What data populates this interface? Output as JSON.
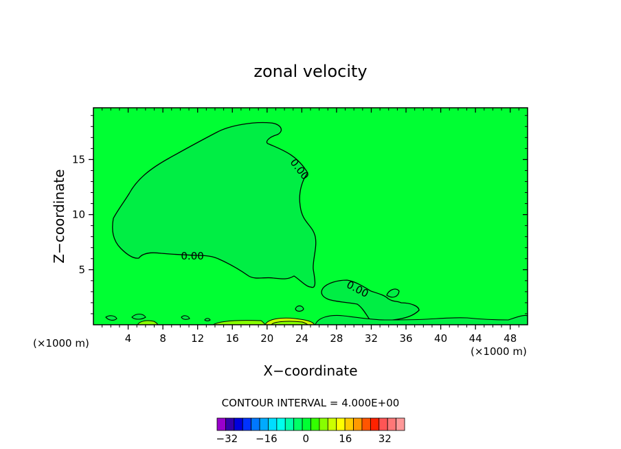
{
  "chart_data": {
    "type": "contour",
    "title": "zonal velocity",
    "xlabel": "X−coordinate",
    "ylabel": "Z−coordinate",
    "x_unit_left": "(×1000 m)",
    "x_unit_right": "(×1000 m)",
    "xlim": [
      0,
      50
    ],
    "ylim": [
      0,
      19.7
    ],
    "xticks": [
      4,
      8,
      12,
      16,
      20,
      24,
      28,
      32,
      36,
      40,
      44,
      48
    ],
    "xtick_labels": [
      "4",
      "8",
      "12",
      "16",
      "20",
      "24",
      "28",
      "32",
      "36",
      "40",
      "44",
      "48"
    ],
    "yticks": [
      5,
      10,
      15
    ],
    "ytick_labels": [
      "5",
      "10",
      "15"
    ],
    "background_color": "#00ff33",
    "negative_fill_color": "#00ee44",
    "contour_labels": [
      {
        "text": "0.00",
        "x": 11.4,
        "y": 6.2
      },
      {
        "text": "0.00",
        "x": 23.7,
        "y": 14.1
      },
      {
        "text": "0.00",
        "x": 30.4,
        "y": 3.2
      }
    ],
    "contour_interval_text": "CONTOUR INTERVAL = 4.000E+00",
    "colorbar": {
      "min": -36,
      "max": 40,
      "step": 4,
      "tick_values": [
        -32,
        -16,
        0,
        16,
        32
      ],
      "tick_labels": [
        "−32",
        "−16",
        "0",
        "16",
        "32"
      ],
      "colors": [
        "#9900cc",
        "#3300aa",
        "#0000dd",
        "#0033ff",
        "#0077ff",
        "#00aaff",
        "#00ddff",
        "#00ffee",
        "#00ffaa",
        "#00ff66",
        "#00ff33",
        "#33ff00",
        "#88ff00",
        "#ccff00",
        "#ffff00",
        "#ffcc00",
        "#ff9900",
        "#ff5500",
        "#ff2200",
        "#ff5555",
        "#ff7777",
        "#ff9999"
      ]
    }
  }
}
